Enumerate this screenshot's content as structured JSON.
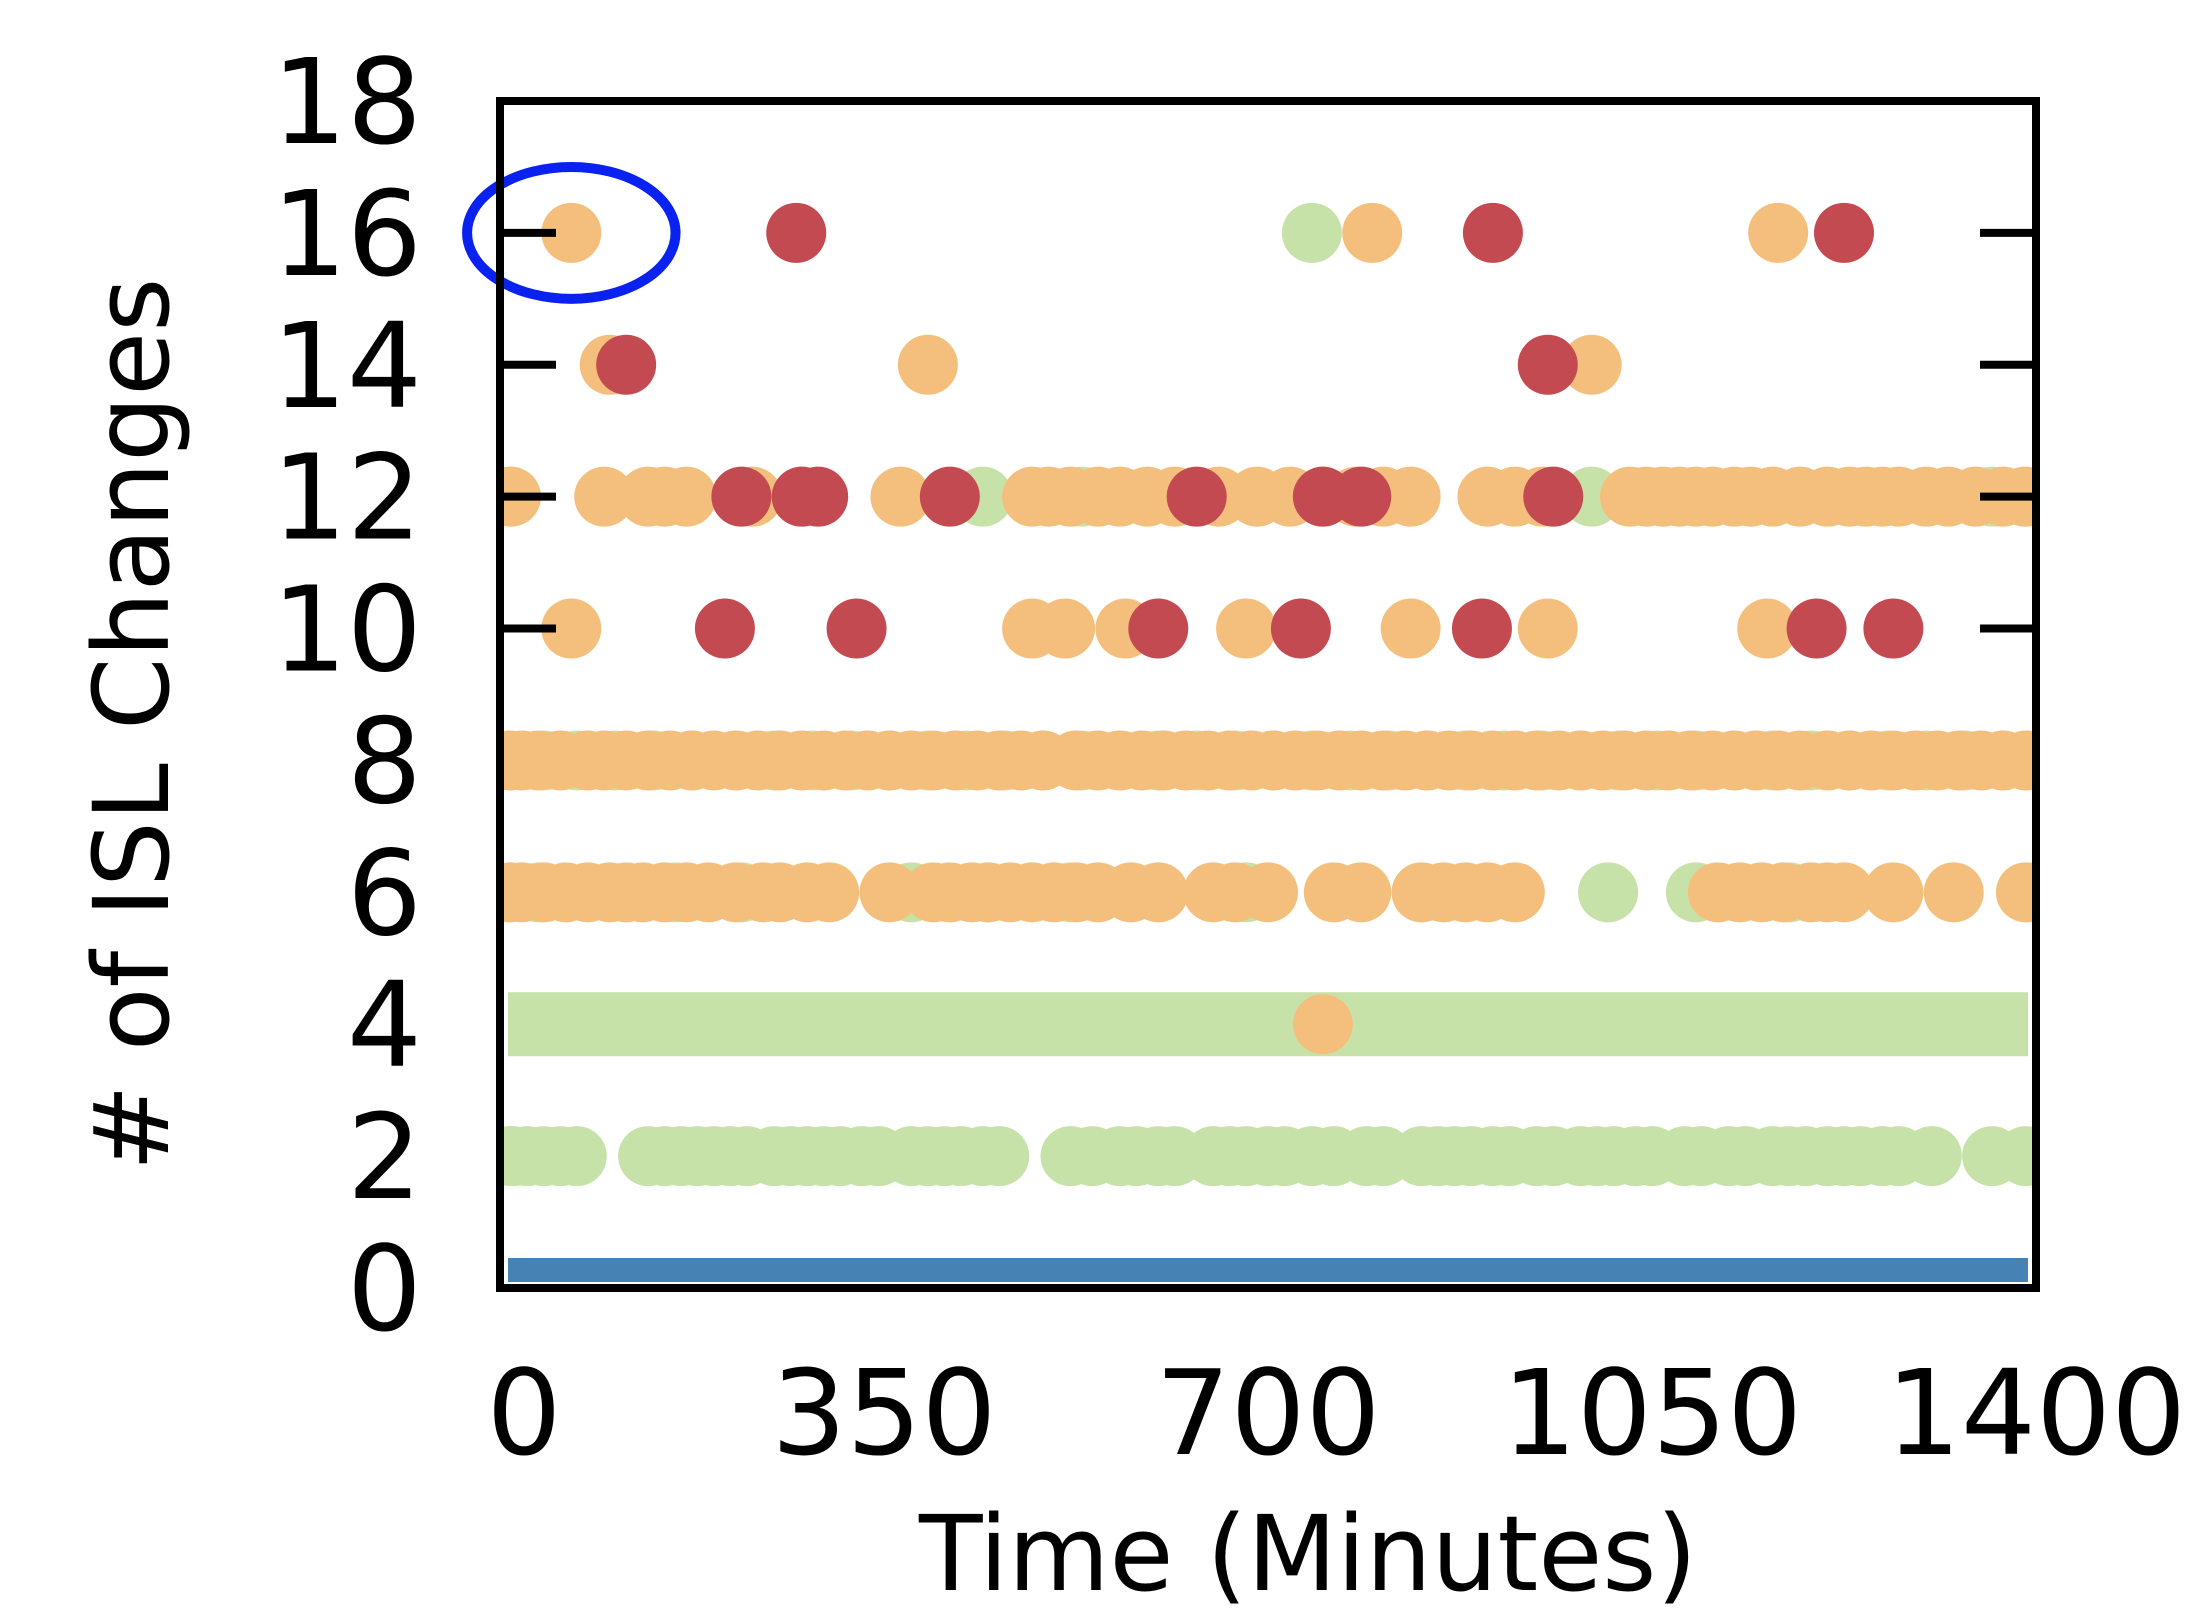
{
  "chart_data": {
    "type": "scatter",
    "title": "",
    "xlabel": "Time (Minutes)",
    "ylabel": "# of ISL Changes",
    "xlim": [
      0,
      1400
    ],
    "ylim": [
      0,
      18
    ],
    "x_ticks": [
      0,
      350,
      700,
      1050,
      1400
    ],
    "y_ticks": [
      0,
      2,
      4,
      6,
      8,
      10,
      12,
      14,
      16,
      18
    ],
    "x_tick_labels": [
      "0",
      "350",
      "700",
      "1050",
      "1400"
    ],
    "y_tick_labels": [
      "0",
      "2",
      "4",
      "6",
      "8",
      "10",
      "12",
      "14",
      "16",
      "18"
    ],
    "grid": false,
    "legend": "none",
    "colors": {
      "blue": "#4682b4",
      "green": "#c6e2a8",
      "orange": "#f4bf7c",
      "red": "#c44a52",
      "highlight": "#0a22f0"
    },
    "bands": [
      {
        "color": "blue",
        "y": 0,
        "x_start": 0,
        "x_end": 1400
      },
      {
        "color": "green",
        "y": 4,
        "x_start": 0,
        "x_end": 1400
      }
    ],
    "series": [
      {
        "color": "green",
        "points": [
          [
            4,
            2
          ],
          [
            12,
            2
          ],
          [
            25,
            2
          ],
          [
            40,
            2
          ],
          [
            55,
            2
          ],
          [
            70,
            2
          ],
          [
            135,
            2
          ],
          [
            150,
            2
          ],
          [
            165,
            2
          ],
          [
            180,
            2
          ],
          [
            195,
            2
          ],
          [
            210,
            2
          ],
          [
            225,
            2
          ],
          [
            250,
            2
          ],
          [
            265,
            2
          ],
          [
            280,
            2
          ],
          [
            295,
            2
          ],
          [
            310,
            2
          ],
          [
            330,
            2
          ],
          [
            345,
            2
          ],
          [
            375,
            2
          ],
          [
            390,
            2
          ],
          [
            405,
            2
          ],
          [
            420,
            2
          ],
          [
            440,
            2
          ],
          [
            455,
            2
          ],
          [
            520,
            2
          ],
          [
            540,
            2
          ],
          [
            565,
            2
          ],
          [
            580,
            2
          ],
          [
            600,
            2
          ],
          [
            615,
            2
          ],
          [
            650,
            2
          ],
          [
            665,
            2
          ],
          [
            680,
            2
          ],
          [
            700,
            2
          ],
          [
            715,
            2
          ],
          [
            740,
            2
          ],
          [
            760,
            2
          ],
          [
            790,
            2
          ],
          [
            805,
            2
          ],
          [
            840,
            2
          ],
          [
            855,
            2
          ],
          [
            870,
            2
          ],
          [
            885,
            2
          ],
          [
            905,
            2
          ],
          [
            920,
            2
          ],
          [
            945,
            2
          ],
          [
            960,
            2
          ],
          [
            985,
            2
          ],
          [
            1000,
            2
          ],
          [
            1015,
            2
          ],
          [
            1035,
            2
          ],
          [
            1050,
            2
          ],
          [
            1080,
            2
          ],
          [
            1095,
            2
          ],
          [
            1120,
            2
          ],
          [
            1135,
            2
          ],
          [
            1160,
            2
          ],
          [
            1175,
            2
          ],
          [
            1190,
            2
          ],
          [
            1210,
            2
          ],
          [
            1225,
            2
          ],
          [
            1240,
            2
          ],
          [
            1260,
            2
          ],
          [
            1275,
            2
          ],
          [
            1305,
            2
          ],
          [
            1360,
            2
          ],
          [
            1395,
            2
          ],
          [
            4,
            6
          ],
          [
            35,
            6
          ],
          [
            160,
            6
          ],
          [
            220,
            6
          ],
          [
            375,
            6
          ],
          [
            445,
            6
          ],
          [
            520,
            6
          ],
          [
            680,
            6
          ],
          [
            840,
            6
          ],
          [
            1010,
            6
          ],
          [
            1090,
            6
          ],
          [
            1175,
            6
          ],
          [
            1395,
            6
          ],
          [
            4,
            8
          ],
          [
            40,
            8
          ],
          [
            70,
            8
          ],
          [
            105,
            8
          ],
          [
            140,
            8
          ],
          [
            175,
            8
          ],
          [
            215,
            8
          ],
          [
            250,
            8
          ],
          [
            285,
            8
          ],
          [
            320,
            8
          ],
          [
            355,
            8
          ],
          [
            390,
            8
          ],
          [
            425,
            8
          ],
          [
            460,
            8
          ],
          [
            495,
            8
          ],
          [
            530,
            8
          ],
          [
            565,
            8
          ],
          [
            600,
            8
          ],
          [
            635,
            8
          ],
          [
            670,
            8
          ],
          [
            705,
            8
          ],
          [
            740,
            8
          ],
          [
            775,
            8
          ],
          [
            810,
            8
          ],
          [
            845,
            8
          ],
          [
            880,
            8
          ],
          [
            915,
            8
          ],
          [
            950,
            8
          ],
          [
            985,
            8
          ],
          [
            1020,
            8
          ],
          [
            1055,
            8
          ],
          [
            1090,
            8
          ],
          [
            1125,
            8
          ],
          [
            1160,
            8
          ],
          [
            1195,
            8
          ],
          [
            1230,
            8
          ],
          [
            1265,
            8
          ],
          [
            1300,
            8
          ],
          [
            1335,
            8
          ],
          [
            1370,
            8
          ],
          [
            1395,
            8
          ],
          [
            4,
            12
          ],
          [
            440,
            12
          ],
          [
            530,
            12
          ],
          [
            995,
            12
          ],
          [
            1360,
            12
          ],
          [
            1395,
            12
          ],
          [
            740,
            16
          ]
        ]
      },
      {
        "color": "orange",
        "points": [
          [
            4,
            6
          ],
          [
            20,
            6
          ],
          [
            40,
            6
          ],
          [
            60,
            6
          ],
          [
            80,
            6
          ],
          [
            100,
            6
          ],
          [
            115,
            6
          ],
          [
            130,
            6
          ],
          [
            150,
            6
          ],
          [
            170,
            6
          ],
          [
            190,
            6
          ],
          [
            215,
            6
          ],
          [
            240,
            6
          ],
          [
            255,
            6
          ],
          [
            280,
            6
          ],
          [
            300,
            6
          ],
          [
            355,
            6
          ],
          [
            395,
            6
          ],
          [
            410,
            6
          ],
          [
            430,
            6
          ],
          [
            445,
            6
          ],
          [
            465,
            6
          ],
          [
            485,
            6
          ],
          [
            505,
            6
          ],
          [
            525,
            6
          ],
          [
            545,
            6
          ],
          [
            575,
            6
          ],
          [
            600,
            6
          ],
          [
            650,
            6
          ],
          [
            670,
            6
          ],
          [
            700,
            6
          ],
          [
            760,
            6
          ],
          [
            785,
            6
          ],
          [
            840,
            6
          ],
          [
            860,
            6
          ],
          [
            880,
            6
          ],
          [
            900,
            6
          ],
          [
            925,
            6
          ],
          [
            1110,
            6
          ],
          [
            1130,
            6
          ],
          [
            1150,
            6
          ],
          [
            1170,
            6
          ],
          [
            1195,
            6
          ],
          [
            1210,
            6
          ],
          [
            1225,
            6
          ],
          [
            1270,
            6
          ],
          [
            1325,
            6
          ],
          [
            1395,
            6
          ],
          [
            4,
            8
          ],
          [
            20,
            8
          ],
          [
            35,
            8
          ],
          [
            55,
            8
          ],
          [
            80,
            8
          ],
          [
            95,
            8
          ],
          [
            115,
            8
          ],
          [
            135,
            8
          ],
          [
            155,
            8
          ],
          [
            175,
            8
          ],
          [
            195,
            8
          ],
          [
            215,
            8
          ],
          [
            235,
            8
          ],
          [
            255,
            8
          ],
          [
            275,
            8
          ],
          [
            295,
            8
          ],
          [
            315,
            8
          ],
          [
            335,
            8
          ],
          [
            355,
            8
          ],
          [
            375,
            8
          ],
          [
            395,
            8
          ],
          [
            415,
            8
          ],
          [
            435,
            8
          ],
          [
            455,
            8
          ],
          [
            475,
            8
          ],
          [
            495,
            8
          ],
          [
            525,
            8
          ],
          [
            545,
            8
          ],
          [
            565,
            8
          ],
          [
            585,
            8
          ],
          [
            605,
            8
          ],
          [
            625,
            8
          ],
          [
            645,
            8
          ],
          [
            665,
            8
          ],
          [
            685,
            8
          ],
          [
            705,
            8
          ],
          [
            725,
            8
          ],
          [
            745,
            8
          ],
          [
            765,
            8
          ],
          [
            785,
            8
          ],
          [
            805,
            8
          ],
          [
            825,
            8
          ],
          [
            845,
            8
          ],
          [
            865,
            8
          ],
          [
            885,
            8
          ],
          [
            905,
            8
          ],
          [
            925,
            8
          ],
          [
            945,
            8
          ],
          [
            965,
            8
          ],
          [
            985,
            8
          ],
          [
            1005,
            8
          ],
          [
            1025,
            8
          ],
          [
            1045,
            8
          ],
          [
            1065,
            8
          ],
          [
            1085,
            8
          ],
          [
            1105,
            8
          ],
          [
            1125,
            8
          ],
          [
            1145,
            8
          ],
          [
            1165,
            8
          ],
          [
            1185,
            8
          ],
          [
            1210,
            8
          ],
          [
            1230,
            8
          ],
          [
            1250,
            8
          ],
          [
            1270,
            8
          ],
          [
            1290,
            8
          ],
          [
            1310,
            8
          ],
          [
            1330,
            8
          ],
          [
            1350,
            8
          ],
          [
            1370,
            8
          ],
          [
            1395,
            8
          ],
          [
            65,
            10
          ],
          [
            485,
            10
          ],
          [
            515,
            10
          ],
          [
            570,
            10
          ],
          [
            680,
            10
          ],
          [
            830,
            10
          ],
          [
            955,
            10
          ],
          [
            1155,
            10
          ],
          [
            10,
            12
          ],
          [
            95,
            12
          ],
          [
            135,
            12
          ],
          [
            150,
            12
          ],
          [
            170,
            12
          ],
          [
            230,
            12
          ],
          [
            275,
            12
          ],
          [
            365,
            12
          ],
          [
            485,
            12
          ],
          [
            500,
            12
          ],
          [
            520,
            12
          ],
          [
            545,
            12
          ],
          [
            565,
            12
          ],
          [
            590,
            12
          ],
          [
            615,
            12
          ],
          [
            655,
            12
          ],
          [
            690,
            12
          ],
          [
            720,
            12
          ],
          [
            750,
            12
          ],
          [
            780,
            12
          ],
          [
            805,
            12
          ],
          [
            830,
            12
          ],
          [
            900,
            12
          ],
          [
            925,
            12
          ],
          [
            950,
            12
          ],
          [
            1030,
            12
          ],
          [
            1045,
            12
          ],
          [
            1060,
            12
          ],
          [
            1075,
            12
          ],
          [
            1090,
            12
          ],
          [
            1105,
            12
          ],
          [
            1125,
            12
          ],
          [
            1140,
            12
          ],
          [
            1160,
            12
          ],
          [
            1185,
            12
          ],
          [
            1210,
            12
          ],
          [
            1230,
            12
          ],
          [
            1245,
            12
          ],
          [
            1260,
            12
          ],
          [
            1275,
            12
          ],
          [
            1300,
            12
          ],
          [
            1320,
            12
          ],
          [
            1345,
            12
          ],
          [
            1370,
            12
          ],
          [
            1390,
            12
          ],
          [
            100,
            14
          ],
          [
            390,
            14
          ],
          [
            995,
            14
          ],
          [
            750,
            4
          ],
          [
            65,
            16
          ],
          [
            795,
            16
          ],
          [
            1165,
            16
          ]
        ]
      },
      {
        "color": "red",
        "points": [
          [
            205,
            10
          ],
          [
            325,
            10
          ],
          [
            600,
            10
          ],
          [
            730,
            10
          ],
          [
            895,
            10
          ],
          [
            1200,
            10
          ],
          [
            1270,
            10
          ],
          [
            220,
            12
          ],
          [
            275,
            12
          ],
          [
            290,
            12
          ],
          [
            410,
            12
          ],
          [
            635,
            12
          ],
          [
            750,
            12
          ],
          [
            785,
            12
          ],
          [
            960,
            12
          ],
          [
            115,
            14
          ],
          [
            955,
            14
          ],
          [
            270,
            16
          ],
          [
            905,
            16
          ],
          [
            1225,
            16
          ]
        ]
      }
    ],
    "highlight": {
      "shape": "ellipse",
      "x": 65,
      "y": 16,
      "rx_data": 95,
      "ry_data": 1.0
    }
  }
}
